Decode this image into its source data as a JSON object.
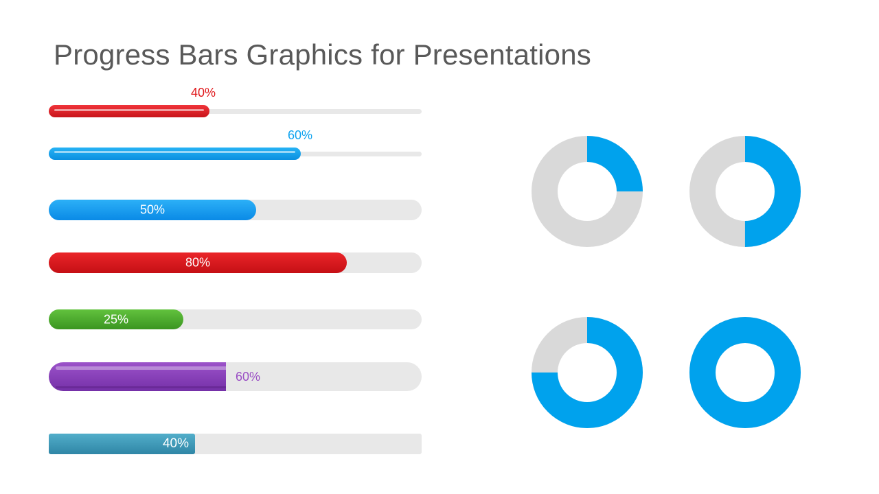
{
  "slide": {
    "title": "Progress Bars Graphics for Presentations"
  },
  "bars": [
    {
      "id": "bar-1",
      "label": "40%",
      "value": 40,
      "color": "#e0191c",
      "label_color": "#e0191c",
      "style": "thin-label-above"
    },
    {
      "id": "bar-2",
      "label": "60%",
      "value": 60,
      "color": "#0fa3ef",
      "label_color": "#0fa3ef",
      "style": "thin-label-above"
    },
    {
      "id": "bar-3",
      "label": "50%",
      "value": 50,
      "color": "#0a94ee",
      "label_color": "#ffffff",
      "style": "pill-label-inside"
    },
    {
      "id": "bar-4",
      "label": "80%",
      "value": 80,
      "color": "#d81118",
      "label_color": "#ffffff",
      "style": "pill-label-inside"
    },
    {
      "id": "bar-5",
      "label": "25%",
      "value": 25,
      "color": "#46a828",
      "label_color": "#ffffff",
      "style": "pill-label-inside"
    },
    {
      "id": "bar-6",
      "label": "60%",
      "value": 60,
      "color": "#8035b3",
      "label_color": "#9a4fc4",
      "style": "thick-label-right"
    },
    {
      "id": "bar-7",
      "label": "40%",
      "value": 40,
      "color": "#3a95b6",
      "label_color": "#ffffff",
      "style": "square-label-inside"
    }
  ],
  "donuts": [
    {
      "id": "donut-1",
      "value": 25,
      "color": "#00a2ed",
      "track": "#d9d9d9"
    },
    {
      "id": "donut-2",
      "value": 50,
      "color": "#00a2ed",
      "track": "#d9d9d9"
    },
    {
      "id": "donut-3",
      "value": 75,
      "color": "#00a2ed",
      "track": "#d9d9d9"
    },
    {
      "id": "donut-4",
      "value": 100,
      "color": "#00a2ed",
      "track": "#d9d9d9"
    }
  ]
}
